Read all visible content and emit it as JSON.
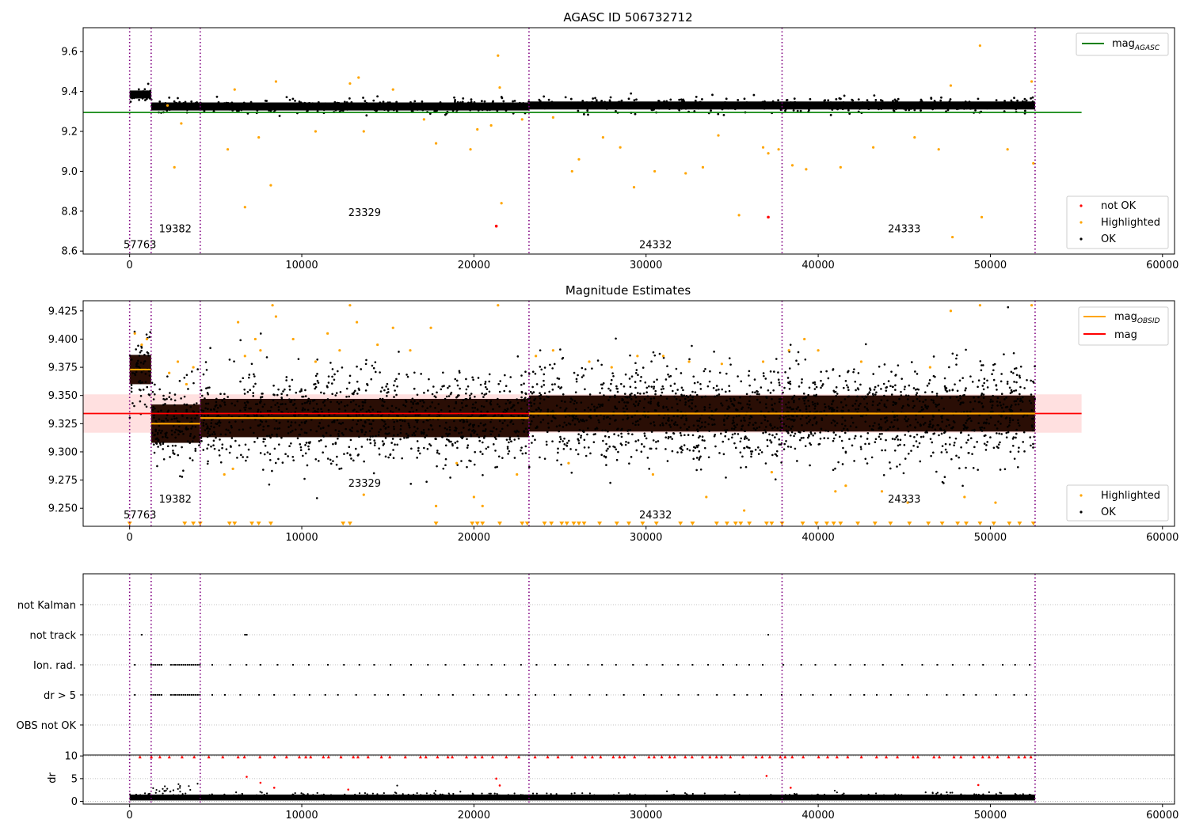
{
  "figure": {
    "title_top": "AGASC ID 506732712",
    "title_mid": "Magnitude Estimates"
  },
  "chart_data": [
    {
      "type": "scatter",
      "title": "AGASC ID 506732712",
      "xlim": [
        -2700,
        60700
      ],
      "ylim": [
        8.585,
        9.72
      ],
      "xticks": [
        0,
        10000,
        20000,
        30000,
        40000,
        50000,
        60000
      ],
      "yticks": [
        8.6,
        8.8,
        9.0,
        9.2,
        9.4,
        9.6
      ],
      "ytick_format": 1,
      "obsid_boundaries": [
        0,
        1250,
        4100,
        23200,
        37900,
        52600
      ],
      "obsid_labels": [
        {
          "text": "57763",
          "x": 600,
          "y": 8.615
        },
        {
          "text": "19382",
          "x": 2650,
          "y": 8.695
        },
        {
          "text": "23329",
          "x": 13650,
          "y": 8.775
        },
        {
          "text": "24332",
          "x": 30550,
          "y": 8.615
        },
        {
          "text": "24333",
          "x": 45000,
          "y": 8.695
        }
      ],
      "reference_line": {
        "name": "mag_AGASC",
        "y": 9.295,
        "x": [
          -2700,
          55300
        ],
        "color": "#008000"
      },
      "segments_mag": [
        {
          "x0": 0,
          "x1": 1250,
          "mag": 9.385,
          "spread": 0.02
        },
        {
          "x0": 1250,
          "x1": 4100,
          "mag": 9.325,
          "spread": 0.02
        },
        {
          "x0": 4100,
          "x1": 23200,
          "mag": 9.325,
          "spread": 0.02
        },
        {
          "x0": 23200,
          "x1": 37900,
          "mag": 9.33,
          "spread": 0.02
        },
        {
          "x0": 37900,
          "x1": 52600,
          "mag": 9.33,
          "spread": 0.02
        }
      ],
      "highlighted_points": [
        [
          2200,
          9.33
        ],
        [
          2600,
          9.02
        ],
        [
          3000,
          9.24
        ],
        [
          5700,
          9.11
        ],
        [
          6100,
          9.41
        ],
        [
          6700,
          8.82
        ],
        [
          7500,
          9.17
        ],
        [
          8200,
          8.93
        ],
        [
          8500,
          9.45
        ],
        [
          10800,
          9.2
        ],
        [
          12800,
          9.44
        ],
        [
          13300,
          9.47
        ],
        [
          13600,
          9.2
        ],
        [
          15300,
          9.41
        ],
        [
          17100,
          9.26
        ],
        [
          17800,
          9.14
        ],
        [
          19800,
          9.11
        ],
        [
          20200,
          9.21
        ],
        [
          21000,
          9.23
        ],
        [
          21400,
          9.58
        ],
        [
          21500,
          9.42
        ],
        [
          21600,
          8.84
        ],
        [
          22800,
          9.26
        ],
        [
          24600,
          9.27
        ],
        [
          25700,
          9.0
        ],
        [
          26100,
          9.06
        ],
        [
          27500,
          9.17
        ],
        [
          28500,
          9.12
        ],
        [
          29300,
          8.92
        ],
        [
          30500,
          9.0
        ],
        [
          32300,
          8.99
        ],
        [
          33300,
          9.02
        ],
        [
          34200,
          9.18
        ],
        [
          35400,
          8.78
        ],
        [
          36800,
          9.12
        ],
        [
          37100,
          9.09
        ],
        [
          37700,
          9.11
        ],
        [
          38500,
          9.03
        ],
        [
          39300,
          9.01
        ],
        [
          41300,
          9.02
        ],
        [
          43200,
          9.12
        ],
        [
          45600,
          9.17
        ],
        [
          47000,
          9.11
        ],
        [
          47700,
          9.43
        ],
        [
          47800,
          8.67
        ],
        [
          49400,
          9.63
        ],
        [
          49500,
          8.77
        ],
        [
          51000,
          9.11
        ],
        [
          52400,
          9.45
        ],
        [
          52500,
          9.04
        ]
      ],
      "not_ok_points": [
        [
          21300,
          8.725
        ],
        [
          37100,
          8.77
        ]
      ],
      "legend": [
        {
          "label": "not OK",
          "color": "#ff0000"
        },
        {
          "label": "Highlighted",
          "color": "#ffa500"
        },
        {
          "label": "OK",
          "color": "#000000"
        }
      ]
    },
    {
      "type": "scatter",
      "title": "Magnitude Estimates",
      "xlim": [
        -2700,
        60700
      ],
      "ylim": [
        9.234,
        9.434
      ],
      "xticks": [
        0,
        10000,
        20000,
        30000,
        40000,
        50000,
        60000
      ],
      "yticks": [
        9.25,
        9.275,
        9.3,
        9.325,
        9.35,
        9.375,
        9.4,
        9.425
      ],
      "ytick_format": 3,
      "obsid_boundaries": [
        0,
        1250,
        4100,
        23200,
        37900,
        52600
      ],
      "obsid_labels": [
        {
          "text": "57763",
          "x": 600,
          "y": 9.241
        },
        {
          "text": "19382",
          "x": 2650,
          "y": 9.255
        },
        {
          "text": "23329",
          "x": 13650,
          "y": 9.269
        },
        {
          "text": "24332",
          "x": 30550,
          "y": 9.241
        },
        {
          "text": "24333",
          "x": 45000,
          "y": 9.255
        }
      ],
      "mag": 9.334,
      "mag_band": [
        9.317,
        9.351
      ],
      "mag_line_x": [
        -2700,
        55300
      ],
      "mag_obsid": [
        {
          "x0": 0,
          "x1": 1250,
          "y": 9.373
        },
        {
          "x0": 1250,
          "x1": 4100,
          "y": 9.325
        },
        {
          "x0": 4100,
          "x1": 23200,
          "y": 9.33
        },
        {
          "x0": 23200,
          "x1": 37900,
          "y": 9.334
        },
        {
          "x0": 37900,
          "x1": 52600,
          "y": 9.334
        }
      ],
      "ok_segments": [
        {
          "x0": 0,
          "x1": 1250,
          "center": 9.373,
          "core": 0.013,
          "spread": 0.03
        },
        {
          "x0": 1250,
          "x1": 4100,
          "center": 9.325,
          "core": 0.017,
          "spread": 0.035
        },
        {
          "x0": 4100,
          "x1": 23200,
          "center": 9.33,
          "core": 0.017,
          "spread": 0.038
        },
        {
          "x0": 23200,
          "x1": 37900,
          "center": 9.334,
          "core": 0.016,
          "spread": 0.038
        },
        {
          "x0": 37900,
          "x1": 52600,
          "center": 9.334,
          "core": 0.016,
          "spread": 0.04
        }
      ],
      "highlighted_points": [
        [
          300,
          9.405
        ],
        [
          700,
          9.395
        ],
        [
          1000,
          9.4
        ],
        [
          2300,
          9.37
        ],
        [
          2800,
          9.38
        ],
        [
          3300,
          9.36
        ],
        [
          3700,
          9.375
        ],
        [
          5500,
          9.28
        ],
        [
          6000,
          9.285
        ],
        [
          6300,
          9.415
        ],
        [
          6700,
          9.385
        ],
        [
          7300,
          9.4
        ],
        [
          7600,
          9.39
        ],
        [
          8300,
          9.43
        ],
        [
          8500,
          9.42
        ],
        [
          9500,
          9.4
        ],
        [
          10800,
          9.38
        ],
        [
          11500,
          9.405
        ],
        [
          12200,
          9.39
        ],
        [
          12800,
          9.43
        ],
        [
          13200,
          9.415
        ],
        [
          13600,
          9.262
        ],
        [
          14400,
          9.395
        ],
        [
          15300,
          9.41
        ],
        [
          16300,
          9.39
        ],
        [
          17500,
          9.41
        ],
        [
          17800,
          9.252
        ],
        [
          19000,
          9.29
        ],
        [
          20000,
          9.26
        ],
        [
          20500,
          9.252
        ],
        [
          21400,
          9.43
        ],
        [
          22500,
          9.28
        ],
        [
          23600,
          9.385
        ],
        [
          24600,
          9.39
        ],
        [
          25500,
          9.29
        ],
        [
          26700,
          9.38
        ],
        [
          28000,
          9.375
        ],
        [
          29500,
          9.385
        ],
        [
          30400,
          9.28
        ],
        [
          31000,
          9.385
        ],
        [
          32500,
          9.38
        ],
        [
          33500,
          9.26
        ],
        [
          34400,
          9.378
        ],
        [
          35700,
          9.248
        ],
        [
          36800,
          9.38
        ],
        [
          37300,
          9.282
        ],
        [
          38300,
          9.39
        ],
        [
          39200,
          9.4
        ],
        [
          40000,
          9.39
        ],
        [
          41000,
          9.265
        ],
        [
          41600,
          9.27
        ],
        [
          42500,
          9.38
        ],
        [
          43700,
          9.265
        ],
        [
          45200,
          9.255
        ],
        [
          46500,
          9.375
        ],
        [
          47700,
          9.425
        ],
        [
          48500,
          9.26
        ],
        [
          49400,
          9.43
        ],
        [
          50300,
          9.255
        ],
        [
          52400,
          9.43
        ]
      ],
      "clipped_low_x": [
        0,
        3200,
        3700,
        4100,
        5800,
        6100,
        7100,
        7500,
        8200,
        12400,
        12800,
        17800,
        19900,
        20200,
        20500,
        21500,
        22800,
        23100,
        24100,
        24500,
        25100,
        25400,
        25800,
        26100,
        26400,
        27300,
        28300,
        29000,
        29800,
        30600,
        32000,
        32700,
        34100,
        34700,
        35200,
        35500,
        36000,
        37000,
        37300,
        37900,
        39100,
        39900,
        40500,
        40900,
        41300,
        42300,
        43300,
        44200,
        45300,
        46400,
        47200,
        48100,
        48600,
        49400,
        50200,
        51100,
        51700,
        52500
      ],
      "legend": [
        {
          "label": "mag_OBSID",
          "color": "#ffa500"
        },
        {
          "label": "mag",
          "color": "#ff0000"
        }
      ],
      "legend_points": [
        {
          "label": "Highlighted",
          "color": "#ffa500"
        },
        {
          "label": "OK",
          "color": "#000000"
        }
      ]
    },
    {
      "type": "scatter",
      "categories": [
        "not Kalman",
        "not track",
        "Ion. rad.",
        "dr > 5",
        "OBS not OK"
      ],
      "xlim": [
        -2700,
        60700
      ],
      "obsid_boundaries": [
        0,
        1250,
        4100,
        23200,
        37900,
        52600
      ],
      "flag_points": {
        "not track": [
          700,
          6700,
          6800,
          37100
        ],
        "Ion. rad.": [
          300
        ],
        "dr > 5": [
          300
        ]
      },
      "flag_dense_ranges": [
        [
          1250,
          1900
        ],
        [
          2400,
          4100
        ]
      ],
      "flag_sparse_step": 700
    },
    {
      "type": "scatter",
      "ylabel": "dr",
      "xlim": [
        -2700,
        60700
      ],
      "ylim": [
        -0.6,
        10.2
      ],
      "yticks": [
        0,
        5,
        10
      ],
      "xticks": [
        0,
        10000,
        20000,
        30000,
        40000,
        50000,
        60000
      ],
      "obsid_boundaries": [
        0,
        1250,
        4100,
        23200,
        37900,
        52600
      ],
      "ok_band": [
        0.2,
        1.5
      ],
      "capped_value": 9.8,
      "outliers": [
        [
          6800,
          5.4
        ],
        [
          7600,
          4.1
        ],
        [
          8400,
          3.0
        ],
        [
          12700,
          2.6
        ],
        [
          21300,
          5.0
        ],
        [
          21500,
          3.5
        ],
        [
          37000,
          5.6
        ],
        [
          38400,
          3.0
        ],
        [
          49300,
          3.6
        ]
      ]
    }
  ]
}
